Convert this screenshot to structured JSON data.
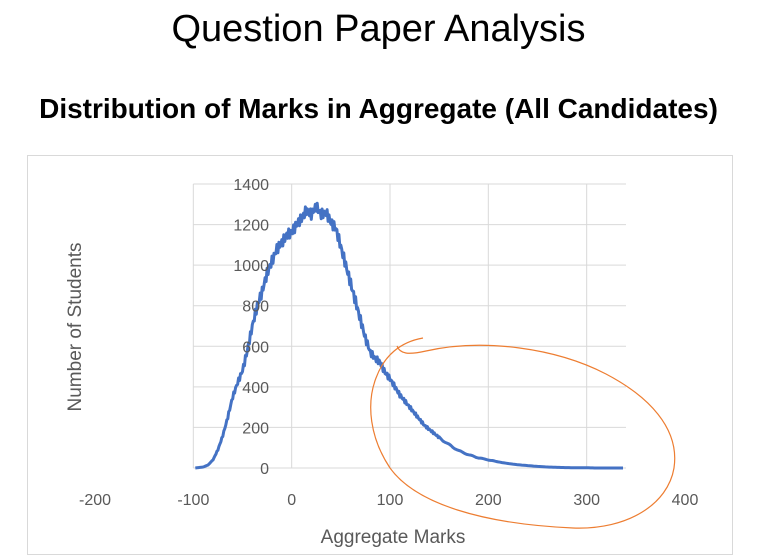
{
  "page": {
    "title": "Question Paper Analysis",
    "chart_heading": "Distribution of Marks in Aggregate (All Candidates)"
  },
  "colors": {
    "series": "#4472c4",
    "annotation": "#ed7d31",
    "grid": "#d9d9d9",
    "tick_text": "#595959"
  },
  "chart_data": {
    "type": "line",
    "title": "",
    "xlabel": "Aggregate Marks",
    "ylabel": "Number of Students",
    "xlim": [
      -200,
      400
    ],
    "ylim": [
      0,
      1400
    ],
    "x_ticks": [
      -200,
      -100,
      0,
      100,
      200,
      300,
      400
    ],
    "y_ticks": [
      0,
      200,
      400,
      600,
      800,
      1000,
      1200,
      1400
    ],
    "grid": true,
    "legend": "none",
    "series": [
      {
        "x": [
          -98,
          -90,
          -85,
          -80,
          -75,
          -70,
          -65,
          -60,
          -55,
          -50,
          -45,
          -40,
          -35,
          -30,
          -25,
          -20,
          -15,
          -10,
          -5,
          0,
          5,
          10,
          15,
          20,
          25,
          30,
          35,
          40,
          45,
          50,
          55,
          60,
          65,
          70,
          75,
          80,
          85,
          90,
          95,
          100,
          105,
          110,
          115,
          120,
          125,
          130,
          135,
          140,
          145,
          150,
          160,
          170,
          180,
          190,
          200,
          210,
          220,
          230,
          240,
          250,
          260,
          270,
          280,
          290,
          300,
          310,
          320,
          337
        ],
        "y": [
          0,
          5,
          15,
          40,
          90,
          160,
          250,
          350,
          420,
          480,
          580,
          700,
          800,
          870,
          960,
          1020,
          1080,
          1110,
          1150,
          1160,
          1200,
          1230,
          1270,
          1250,
          1290,
          1250,
          1260,
          1210,
          1180,
          1090,
          1000,
          910,
          820,
          730,
          640,
          570,
          540,
          520,
          470,
          440,
          400,
          360,
          330,
          300,
          270,
          240,
          210,
          190,
          170,
          150,
          115,
          85,
          65,
          50,
          40,
          30,
          22,
          16,
          12,
          8,
          5,
          3,
          2,
          1,
          1,
          0,
          0,
          0
        ]
      }
    ]
  }
}
